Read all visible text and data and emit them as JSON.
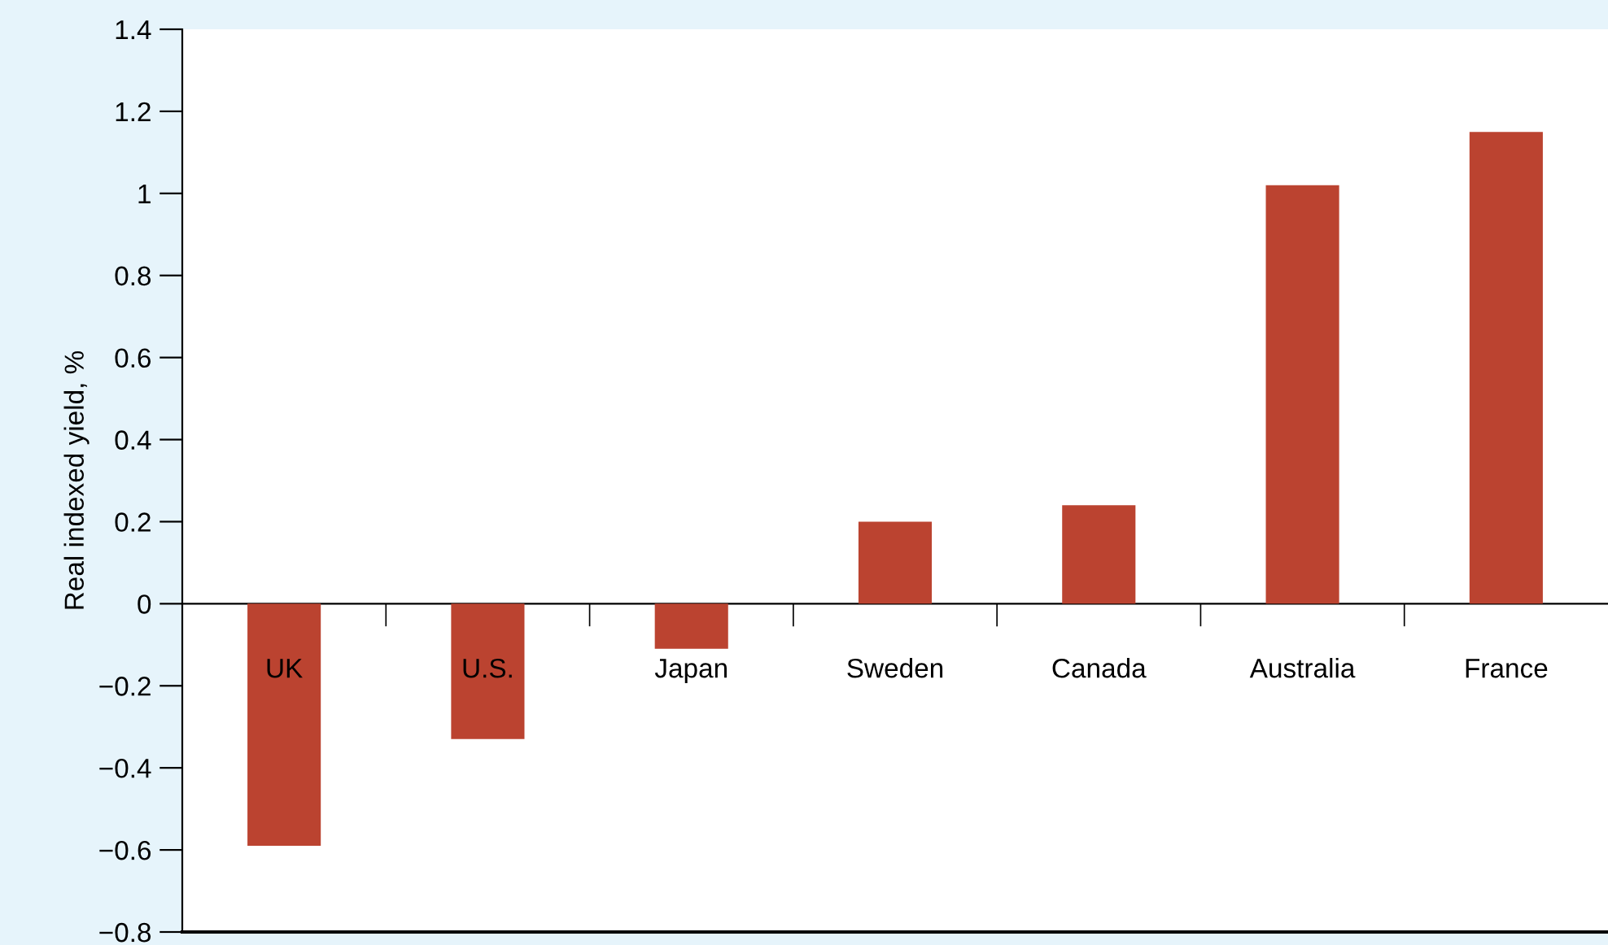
{
  "chart_data": {
    "type": "bar",
    "ylabel": "Real indexed yield, %",
    "categories": [
      "UK",
      "U.S.",
      "Japan",
      "Sweden",
      "Canada",
      "Australia",
      "France"
    ],
    "values": [
      -0.59,
      -0.33,
      -0.11,
      0.2,
      0.24,
      1.02,
      1.15
    ],
    "color": "#bb4330",
    "ylim": [
      -0.8,
      1.4
    ],
    "yticks": [
      {
        "value": -0.8,
        "label": "−0.8"
      },
      {
        "value": -0.6,
        "label": "−0.6"
      },
      {
        "value": -0.4,
        "label": "−0.4"
      },
      {
        "value": -0.2,
        "label": "−0.2"
      },
      0,
      0.2,
      0.4,
      0.6,
      0.8,
      1,
      1.2,
      1.4
    ],
    "grid": false
  }
}
